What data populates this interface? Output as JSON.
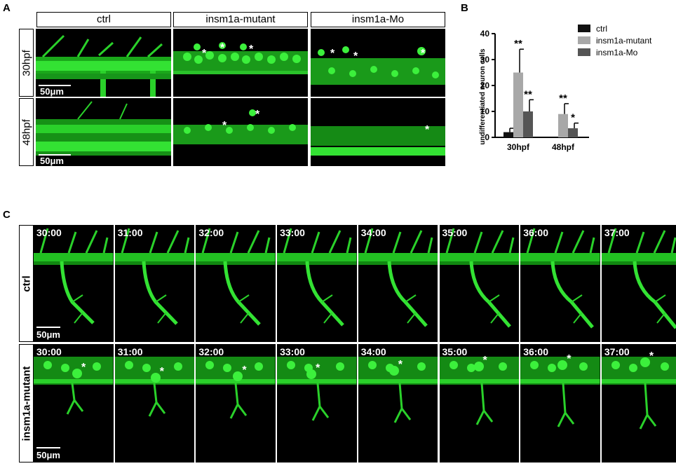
{
  "panels": {
    "a": {
      "letter": "A",
      "columns": [
        "ctrl",
        "insm1a-mutant",
        "insm1a-Mo"
      ],
      "rows": [
        "30hpf",
        "48hpf"
      ],
      "scale_label": "50μm",
      "star": "*"
    },
    "b": {
      "letter": "B"
    },
    "c": {
      "letter": "C",
      "rows": [
        "ctrl",
        "insm1a-mutant"
      ],
      "timepoints": [
        "30:00",
        "31:00",
        "32:00",
        "33:00",
        "34:00",
        "35:00",
        "36:00",
        "37:00"
      ],
      "scale_label": "50μm",
      "star": "*"
    }
  },
  "colors": {
    "fluorescence": "#22dd22",
    "background": "#000000"
  },
  "chart_data": {
    "type": "bar",
    "categories": [
      "30hpf",
      "48hpf"
    ],
    "ylabel": "undifferentiated neuron cells",
    "xlabel": "",
    "ylim": [
      0,
      40
    ],
    "yticks": [
      "0",
      "10",
      "20",
      "30",
      "40"
    ],
    "legend_position": "top-right",
    "series": [
      {
        "name": "ctrl",
        "color": "#111111",
        "values": [
          2,
          0
        ],
        "errors": [
          1.5,
          0
        ],
        "marks": [
          "",
          ""
        ]
      },
      {
        "name": "insm1a-mutant",
        "color": "#a8a8a8",
        "values": [
          25,
          9
        ],
        "errors": [
          9,
          4
        ],
        "marks": [
          "**",
          "**"
        ]
      },
      {
        "name": "insm1a-Mo",
        "color": "#555555",
        "values": [
          10,
          3.5
        ],
        "errors": [
          4.5,
          2
        ],
        "marks": [
          "**",
          "*"
        ]
      }
    ]
  }
}
